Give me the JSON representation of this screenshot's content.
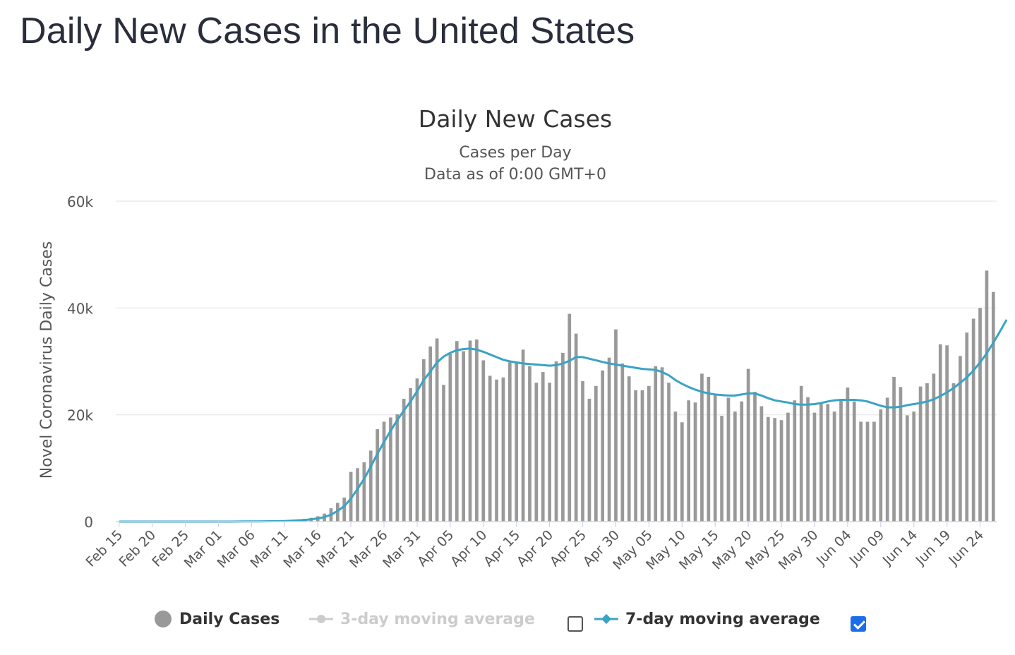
{
  "page": {
    "title": "Daily New Cases in the United States"
  },
  "chart_data": {
    "type": "bar",
    "title": "Daily New Cases",
    "subtitle": "Cases per Day",
    "subtitle2": "Data as of 0:00 GMT+0",
    "ylabel": "Novel Coronavirus Daily Cases",
    "ylim": [
      0,
      60000
    ],
    "y_ticks": [
      "0",
      "20k",
      "40k",
      "60k"
    ],
    "x_tick_labels": [
      "Feb 15",
      "Feb 20",
      "Feb 25",
      "Mar 01",
      "Mar 06",
      "Mar 11",
      "Mar 16",
      "Mar 21",
      "Mar 26",
      "Mar 31",
      "Apr 05",
      "Apr 10",
      "Apr 15",
      "Apr 20",
      "Apr 25",
      "Apr 30",
      "May 05",
      "May 10",
      "May 15",
      "May 20",
      "May 25",
      "May 30",
      "Jun 04",
      "Jun 09",
      "Jun 14",
      "Jun 19",
      "Jun 24"
    ],
    "x_start": "Feb 15",
    "x_end": "Jun 27",
    "grid": true,
    "bar_color": "#999999",
    "line_color": "#3aa3c5",
    "series": [
      {
        "name": "Daily Cases",
        "type": "bar",
        "values": [
          0,
          0,
          0,
          0,
          0,
          0,
          0,
          0,
          0,
          0,
          0,
          0,
          0,
          0,
          0,
          0,
          0,
          20,
          20,
          30,
          40,
          60,
          70,
          100,
          150,
          210,
          280,
          400,
          530,
          700,
          1000,
          1500,
          2500,
          3500,
          4500,
          9300,
          10000,
          11100,
          13300,
          17300,
          18700,
          19500,
          20100,
          23000,
          25000,
          26800,
          30400,
          32800,
          34300,
          25600,
          31400,
          33800,
          31900,
          33900,
          34100,
          30200,
          27300,
          26600,
          27000,
          29800,
          30000,
          32200,
          29100,
          26000,
          28000,
          26000,
          30000,
          31600,
          38900,
          35200,
          26300,
          23000,
          25400,
          28300,
          30700,
          36000,
          29600,
          27200,
          24600,
          24600,
          25400,
          29100,
          28900,
          26000,
          20600,
          18600,
          22700,
          22300,
          27700,
          27100,
          23700,
          19800,
          23200,
          20600,
          22500,
          28600,
          24300,
          21600,
          19600,
          19400,
          19000,
          20400,
          22700,
          25400,
          23300,
          20400,
          22000,
          22000,
          20600,
          22600,
          25100,
          22500,
          18700,
          18700,
          18700,
          21000,
          23200,
          27100,
          25200,
          19900,
          20600,
          25300,
          25900,
          27700,
          33200,
          33000,
          25900,
          31000,
          35400,
          38000,
          40000,
          47000,
          43000
        ]
      },
      {
        "name": "3-day moving average",
        "type": "line",
        "visible": false
      },
      {
        "name": "7-day moving average",
        "type": "line",
        "values": [
          0,
          0,
          0,
          0,
          0,
          0,
          0,
          0,
          0,
          0,
          0,
          0,
          0,
          0,
          0,
          0,
          0,
          0,
          10,
          20,
          30,
          40,
          50,
          60,
          80,
          110,
          160,
          220,
          310,
          440,
          600,
          850,
          1300,
          2000,
          2900,
          4300,
          6100,
          8000,
          10300,
          12700,
          14900,
          17000,
          19000,
          20800,
          22500,
          24400,
          26500,
          28100,
          29800,
          30900,
          31600,
          32100,
          32300,
          32400,
          32200,
          31800,
          31300,
          30800,
          30300,
          30000,
          29800,
          29600,
          29500,
          29400,
          29300,
          29200,
          29300,
          29600,
          30100,
          30800,
          30800,
          30500,
          30200,
          29900,
          29600,
          29400,
          29200,
          29000,
          28800,
          28600,
          28500,
          28400,
          28000,
          27400,
          26500,
          25800,
          25200,
          24700,
          24300,
          24000,
          23800,
          23700,
          23600,
          23600,
          23800,
          24000,
          24000,
          23600,
          23100,
          22700,
          22500,
          22300,
          22000,
          21900,
          21900,
          22000,
          22200,
          22500,
          22700,
          22800,
          22800,
          22800,
          22700,
          22500,
          22100,
          21700,
          21400,
          21400,
          21500,
          21800,
          22000,
          22200,
          22500,
          22900,
          23500,
          24200,
          25000,
          26000,
          27000,
          28300,
          29800,
          31500,
          33500,
          35600,
          37800
        ]
      }
    ]
  },
  "legend": {
    "items": [
      {
        "label": "Daily Cases",
        "enabled": true,
        "color": "#999999"
      },
      {
        "label": "3-day moving average",
        "enabled": false,
        "checked": false,
        "color": "#cccccc"
      },
      {
        "label": "7-day moving average",
        "enabled": true,
        "checked": true,
        "color": "#3aa3c5"
      }
    ]
  }
}
